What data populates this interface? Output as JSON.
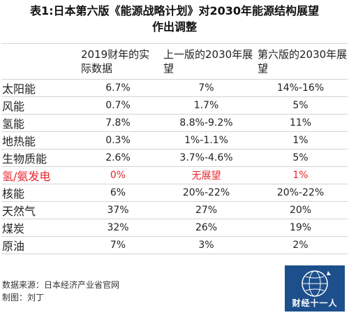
{
  "title": {
    "line1": "表1:日本第六版《能源战略计划》对2030年能源结构展望",
    "line2": "作出调整"
  },
  "table": {
    "headers": [
      "",
      "2019财年的实际数据",
      "上一版的2030年展望",
      "第六版的2030年展望"
    ],
    "rows": [
      {
        "name": "太阳能",
        "actual2019": "6.7%",
        "prev2030": "7%",
        "sixth2030": "14%-16%"
      },
      {
        "name": "风能",
        "actual2019": "0.7%",
        "prev2030": "1.7%",
        "sixth2030": "5%"
      },
      {
        "name": "氢能",
        "actual2019": "7.8%",
        "prev2030": "8.8%-9.2%",
        "sixth2030": "11%"
      },
      {
        "name": "地热能",
        "actual2019": "0.3%",
        "prev2030": "1%-1.1%",
        "sixth2030": "1%"
      },
      {
        "name": "生物质能",
        "actual2019": "2.6%",
        "prev2030": "3.7%-4.6%",
        "sixth2030": "5%"
      },
      {
        "name": "氢/氨发电",
        "actual2019": "0%",
        "prev2030": "无展望",
        "sixth2030": "1%"
      },
      {
        "name": "核能",
        "actual2019": "6%",
        "prev2030": "20%-22%",
        "sixth2030": "20%-22%"
      },
      {
        "name": "天然气",
        "actual2019": "37%",
        "prev2030": "27%",
        "sixth2030": "20%"
      },
      {
        "name": "煤炭",
        "actual2019": "32%",
        "prev2030": "26%",
        "sixth2030": "19%"
      },
      {
        "name": "原油",
        "actual2019": "7%",
        "prev2030": "3%",
        "sixth2030": "2%"
      }
    ]
  },
  "footer": {
    "source": "数据来源：日本经济产业省官网",
    "author": "制图：刘丁"
  },
  "logo": {
    "text": "财经十一人"
  },
  "colors": {
    "highlight": "#e8262c",
    "logo_bg": "#1d4f8c",
    "rule": "#d4d4d4"
  }
}
